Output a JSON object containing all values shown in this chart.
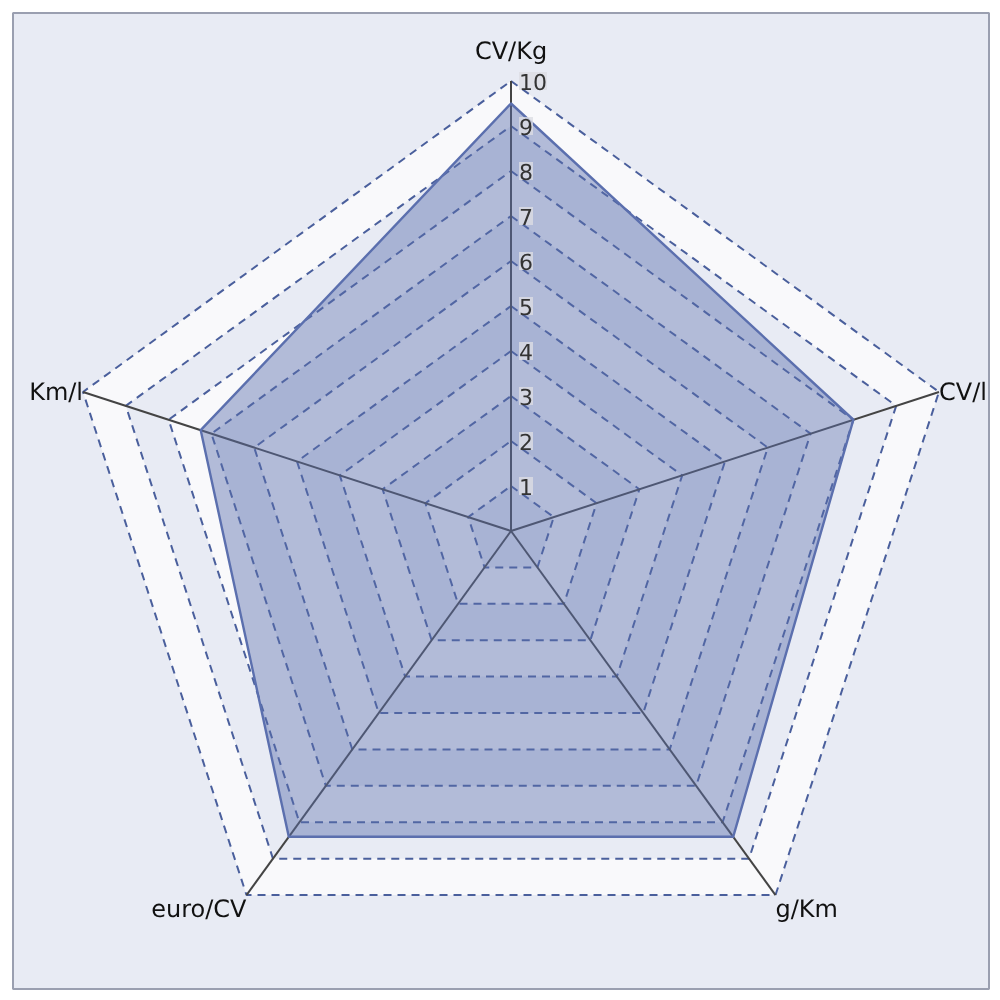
{
  "chart_data": {
    "type": "radar",
    "categories": [
      "CV/Kg",
      "CV/l",
      "g/Km",
      "euro/CV",
      "Km/l"
    ],
    "series": [
      {
        "color": "#5b6fae",
        "values": [
          9.5,
          8.0,
          8.4,
          8.4,
          7.25
        ]
      }
    ],
    "ylim": [
      0,
      10
    ],
    "yticks": [
      1,
      2,
      3,
      4,
      5,
      6,
      7,
      8,
      9,
      10
    ],
    "grid": true
  }
}
